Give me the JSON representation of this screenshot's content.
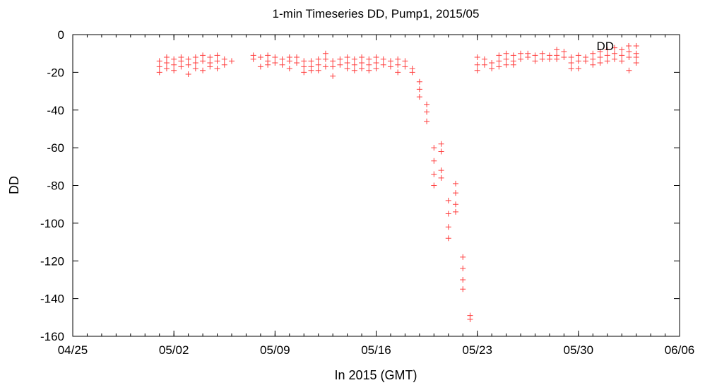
{
  "chart_data": {
    "type": "scatter",
    "title": "1-min Timeseries DD, Pump1, 2015/05",
    "xlabel": "In 2015 (GMT)",
    "ylabel": "DD",
    "ylim": [
      -160,
      0
    ],
    "yticks": [
      0,
      -20,
      -40,
      -60,
      -80,
      -100,
      -120,
      -140,
      -160
    ],
    "xlim": [
      "2015-04-25",
      "2015-06-06"
    ],
    "xticks": [
      {
        "date": "2015-04-25",
        "label": "04/25"
      },
      {
        "date": "2015-05-02",
        "label": "05/02"
      },
      {
        "date": "2015-05-09",
        "label": "05/09"
      },
      {
        "date": "2015-05-16",
        "label": "05/16"
      },
      {
        "date": "2015-05-23",
        "label": "05/23"
      },
      {
        "date": "2015-05-30",
        "label": "05/30"
      },
      {
        "date": "2015-06-06",
        "label": "06/06"
      }
    ],
    "grid": false,
    "legend_position": "top-right",
    "marker": "+",
    "color": "#ff4040",
    "series": [
      {
        "name": "DD",
        "points": [
          [
            "2015-05-01 00:00",
            -14
          ],
          [
            "2015-05-01 00:00",
            -17
          ],
          [
            "2015-05-01 00:00",
            -20
          ],
          [
            "2015-05-01 12:00",
            -12
          ],
          [
            "2015-05-01 12:00",
            -15
          ],
          [
            "2015-05-01 12:00",
            -18
          ],
          [
            "2015-05-02 00:00",
            -13
          ],
          [
            "2015-05-02 00:00",
            -16
          ],
          [
            "2015-05-02 00:00",
            -19
          ],
          [
            "2015-05-02 12:00",
            -12
          ],
          [
            "2015-05-02 12:00",
            -14
          ],
          [
            "2015-05-02 12:00",
            -17
          ],
          [
            "2015-05-03 00:00",
            -13
          ],
          [
            "2015-05-03 00:00",
            -16
          ],
          [
            "2015-05-03 00:00",
            -21
          ],
          [
            "2015-05-03 12:00",
            -12
          ],
          [
            "2015-05-03 12:00",
            -15
          ],
          [
            "2015-05-03 12:00",
            -18
          ],
          [
            "2015-05-04 00:00",
            -11
          ],
          [
            "2015-05-04 00:00",
            -14
          ],
          [
            "2015-05-04 00:00",
            -19
          ],
          [
            "2015-05-04 12:00",
            -12
          ],
          [
            "2015-05-04 12:00",
            -15
          ],
          [
            "2015-05-04 12:00",
            -17
          ],
          [
            "2015-05-05 00:00",
            -11
          ],
          [
            "2015-05-05 00:00",
            -14
          ],
          [
            "2015-05-05 00:00",
            -18
          ],
          [
            "2015-05-05 12:00",
            -13
          ],
          [
            "2015-05-05 12:00",
            -16
          ],
          [
            "2015-05-06 00:00",
            -14
          ],
          [
            "2015-05-07 12:00",
            -11
          ],
          [
            "2015-05-07 12:00",
            -13
          ],
          [
            "2015-05-08 00:00",
            -12
          ],
          [
            "2015-05-08 00:00",
            -17
          ],
          [
            "2015-05-08 12:00",
            -11
          ],
          [
            "2015-05-08 12:00",
            -14
          ],
          [
            "2015-05-08 12:00",
            -16
          ],
          [
            "2015-05-09 00:00",
            -12
          ],
          [
            "2015-05-09 00:00",
            -15
          ],
          [
            "2015-05-09 12:00",
            -13
          ],
          [
            "2015-05-09 12:00",
            -16
          ],
          [
            "2015-05-10 00:00",
            -12
          ],
          [
            "2015-05-10 00:00",
            -14
          ],
          [
            "2015-05-10 00:00",
            -18
          ],
          [
            "2015-05-10 12:00",
            -12
          ],
          [
            "2015-05-10 12:00",
            -15
          ],
          [
            "2015-05-11 00:00",
            -14
          ],
          [
            "2015-05-11 00:00",
            -17
          ],
          [
            "2015-05-11 00:00",
            -20
          ],
          [
            "2015-05-11 12:00",
            -14
          ],
          [
            "2015-05-11 12:00",
            -17
          ],
          [
            "2015-05-11 12:00",
            -19
          ],
          [
            "2015-05-12 00:00",
            -13
          ],
          [
            "2015-05-12 00:00",
            -16
          ],
          [
            "2015-05-12 00:00",
            -19
          ],
          [
            "2015-05-12 12:00",
            -10
          ],
          [
            "2015-05-12 12:00",
            -13
          ],
          [
            "2015-05-12 12:00",
            -17
          ],
          [
            "2015-05-13 00:00",
            -14
          ],
          [
            "2015-05-13 00:00",
            -17
          ],
          [
            "2015-05-13 00:00",
            -22
          ],
          [
            "2015-05-13 12:00",
            -13
          ],
          [
            "2015-05-13 12:00",
            -16
          ],
          [
            "2015-05-14 00:00",
            -12
          ],
          [
            "2015-05-14 00:00",
            -15
          ],
          [
            "2015-05-14 00:00",
            -18
          ],
          [
            "2015-05-14 12:00",
            -13
          ],
          [
            "2015-05-14 12:00",
            -16
          ],
          [
            "2015-05-14 12:00",
            -19
          ],
          [
            "2015-05-15 00:00",
            -12
          ],
          [
            "2015-05-15 00:00",
            -15
          ],
          [
            "2015-05-15 00:00",
            -18
          ],
          [
            "2015-05-15 12:00",
            -13
          ],
          [
            "2015-05-15 12:00",
            -16
          ],
          [
            "2015-05-15 12:00",
            -19
          ],
          [
            "2015-05-16 00:00",
            -12
          ],
          [
            "2015-05-16 00:00",
            -15
          ],
          [
            "2015-05-16 00:00",
            -18
          ],
          [
            "2015-05-16 12:00",
            -13
          ],
          [
            "2015-05-16 12:00",
            -16
          ],
          [
            "2015-05-17 00:00",
            -14
          ],
          [
            "2015-05-17 00:00",
            -17
          ],
          [
            "2015-05-17 12:00",
            -13
          ],
          [
            "2015-05-17 12:00",
            -16
          ],
          [
            "2015-05-17 12:00",
            -20
          ],
          [
            "2015-05-18 00:00",
            -14
          ],
          [
            "2015-05-18 00:00",
            -17
          ],
          [
            "2015-05-18 12:00",
            -18
          ],
          [
            "2015-05-18 12:00",
            -20
          ],
          [
            "2015-05-19 00:00",
            -25
          ],
          [
            "2015-05-19 00:00",
            -29
          ],
          [
            "2015-05-19 00:00",
            -33
          ],
          [
            "2015-05-19 12:00",
            -37
          ],
          [
            "2015-05-19 12:00",
            -41
          ],
          [
            "2015-05-19 12:00",
            -46
          ],
          [
            "2015-05-20 00:00",
            -60
          ],
          [
            "2015-05-20 00:00",
            -67
          ],
          [
            "2015-05-20 00:00",
            -74
          ],
          [
            "2015-05-20 00:00",
            -80
          ],
          [
            "2015-05-20 12:00",
            -58
          ],
          [
            "2015-05-20 12:00",
            -62
          ],
          [
            "2015-05-20 12:00",
            -72
          ],
          [
            "2015-05-20 12:00",
            -76
          ],
          [
            "2015-05-21 00:00",
            -88
          ],
          [
            "2015-05-21 00:00",
            -95
          ],
          [
            "2015-05-21 00:00",
            -102
          ],
          [
            "2015-05-21 00:00",
            -108
          ],
          [
            "2015-05-21 12:00",
            -79
          ],
          [
            "2015-05-21 12:00",
            -84
          ],
          [
            "2015-05-21 12:00",
            -90
          ],
          [
            "2015-05-21 12:00",
            -94
          ],
          [
            "2015-05-22 00:00",
            -118
          ],
          [
            "2015-05-22 00:00",
            -124
          ],
          [
            "2015-05-22 00:00",
            -130
          ],
          [
            "2015-05-22 00:00",
            -135
          ],
          [
            "2015-05-22 12:00",
            -149
          ],
          [
            "2015-05-22 12:00",
            -151
          ],
          [
            "2015-05-23 00:00",
            -12
          ],
          [
            "2015-05-23 00:00",
            -16
          ],
          [
            "2015-05-23 00:00",
            -19
          ],
          [
            "2015-05-23 12:00",
            -13
          ],
          [
            "2015-05-23 12:00",
            -16
          ],
          [
            "2015-05-24 00:00",
            -15
          ],
          [
            "2015-05-24 00:00",
            -18
          ],
          [
            "2015-05-24 12:00",
            -11
          ],
          [
            "2015-05-24 12:00",
            -14
          ],
          [
            "2015-05-24 12:00",
            -17
          ],
          [
            "2015-05-25 00:00",
            -10
          ],
          [
            "2015-05-25 00:00",
            -13
          ],
          [
            "2015-05-25 00:00",
            -16
          ],
          [
            "2015-05-25 12:00",
            -11
          ],
          [
            "2015-05-25 12:00",
            -14
          ],
          [
            "2015-05-25 12:00",
            -16
          ],
          [
            "2015-05-26 00:00",
            -10
          ],
          [
            "2015-05-26 00:00",
            -13
          ],
          [
            "2015-05-26 12:00",
            -10
          ],
          [
            "2015-05-26 12:00",
            -12
          ],
          [
            "2015-05-27 00:00",
            -11
          ],
          [
            "2015-05-27 00:00",
            -14
          ],
          [
            "2015-05-27 12:00",
            -10
          ],
          [
            "2015-05-27 12:00",
            -13
          ],
          [
            "2015-05-28 00:00",
            -11
          ],
          [
            "2015-05-28 00:00",
            -13
          ],
          [
            "2015-05-28 12:00",
            -8
          ],
          [
            "2015-05-28 12:00",
            -11
          ],
          [
            "2015-05-28 12:00",
            -13
          ],
          [
            "2015-05-29 00:00",
            -9
          ],
          [
            "2015-05-29 00:00",
            -12
          ],
          [
            "2015-05-29 12:00",
            -12
          ],
          [
            "2015-05-29 12:00",
            -15
          ],
          [
            "2015-05-29 12:00",
            -18
          ],
          [
            "2015-05-30 00:00",
            -11
          ],
          [
            "2015-05-30 00:00",
            -14
          ],
          [
            "2015-05-30 00:00",
            -18
          ],
          [
            "2015-05-30 12:00",
            -12
          ],
          [
            "2015-05-30 12:00",
            -14
          ],
          [
            "2015-05-31 00:00",
            -10
          ],
          [
            "2015-05-31 00:00",
            -13
          ],
          [
            "2015-05-31 00:00",
            -16
          ],
          [
            "2015-05-31 12:00",
            -9
          ],
          [
            "2015-05-31 12:00",
            -12
          ],
          [
            "2015-05-31 12:00",
            -15
          ],
          [
            "2015-06-01 00:00",
            -8
          ],
          [
            "2015-06-01 00:00",
            -11
          ],
          [
            "2015-06-01 00:00",
            -14
          ],
          [
            "2015-06-01 12:00",
            -7
          ],
          [
            "2015-06-01 12:00",
            -10
          ],
          [
            "2015-06-01 12:00",
            -13
          ],
          [
            "2015-06-02 00:00",
            -8
          ],
          [
            "2015-06-02 00:00",
            -11
          ],
          [
            "2015-06-02 00:00",
            -14
          ],
          [
            "2015-06-02 12:00",
            -9
          ],
          [
            "2015-06-02 12:00",
            -12
          ],
          [
            "2015-06-02 12:00",
            -19
          ],
          [
            "2015-06-03 00:00",
            -6
          ],
          [
            "2015-06-03 00:00",
            -10
          ],
          [
            "2015-06-03 00:00",
            -12
          ],
          [
            "2015-06-03 00:00",
            -15
          ]
        ]
      }
    ]
  }
}
